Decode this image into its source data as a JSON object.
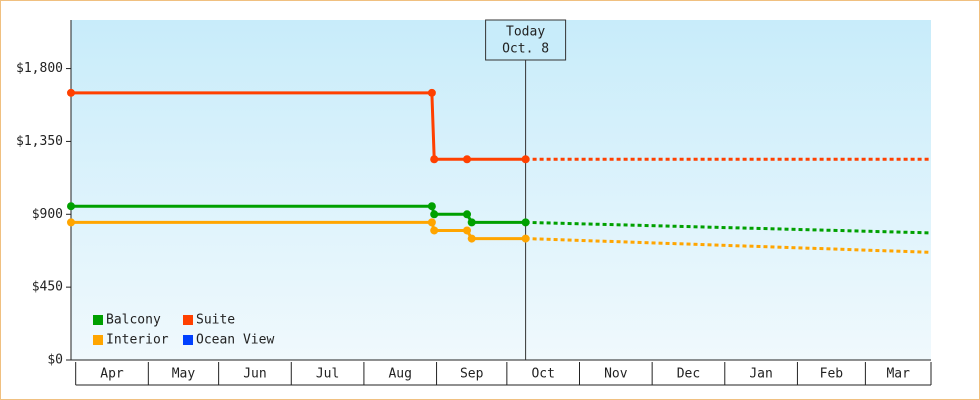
{
  "chart_data": {
    "type": "line",
    "ylim": [
      0,
      2100
    ],
    "yticks": [
      {
        "value": 0,
        "label": "$0"
      },
      {
        "value": 450,
        "label": "$450"
      },
      {
        "value": 900,
        "label": "$900"
      },
      {
        "value": 1350,
        "label": "$1,350"
      },
      {
        "value": 1800,
        "label": "$1,800"
      }
    ],
    "xlim": [
      0,
      367
    ],
    "xticks": [
      {
        "value": 2,
        "label": "Apr"
      },
      {
        "value": 33,
        "label": "May"
      },
      {
        "value": 63,
        "label": "Jun"
      },
      {
        "value": 94,
        "label": "Jul"
      },
      {
        "value": 125,
        "label": "Aug"
      },
      {
        "value": 156,
        "label": "Sep"
      },
      {
        "value": 186,
        "label": "Oct"
      },
      {
        "value": 217,
        "label": "Nov"
      },
      {
        "value": 248,
        "label": "Dec"
      },
      {
        "value": 279,
        "label": "Jan"
      },
      {
        "value": 310,
        "label": "Feb"
      },
      {
        "value": 339,
        "label": "Mar"
      }
    ],
    "today": {
      "x": 194,
      "label": [
        "Today",
        "Oct. 8"
      ]
    },
    "series": [
      {
        "name": "Balcony",
        "color": "#00a000",
        "x": [
          0,
          154,
          155,
          169,
          171,
          194,
          367
        ],
        "values": [
          950,
          950,
          900,
          900,
          850,
          850,
          785
        ]
      },
      {
        "name": "Suite",
        "color": "#ff4000",
        "x": [
          0,
          154,
          155,
          169,
          194,
          367
        ],
        "values": [
          1650,
          1650,
          1240,
          1240,
          1240,
          1240
        ]
      },
      {
        "name": "Interior",
        "color": "#ffa500",
        "x": [
          0,
          154,
          155,
          169,
          171,
          194,
          367
        ],
        "values": [
          850,
          850,
          800,
          800,
          750,
          750,
          665
        ]
      },
      {
        "name": "Ocean View",
        "color": "#0040ff",
        "x": [],
        "values": []
      }
    ]
  }
}
